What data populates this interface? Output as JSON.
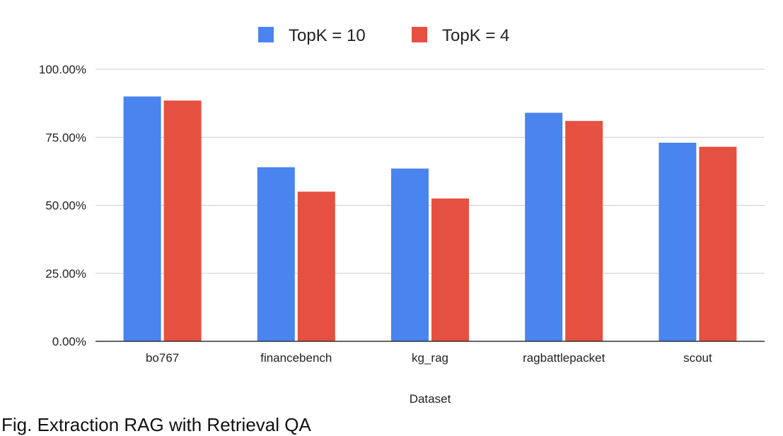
{
  "chart_data": {
    "type": "bar",
    "title": "",
    "xlabel": "Dataset",
    "ylabel": "",
    "categories": [
      "bo767",
      "financebench",
      "kg_rag",
      "ragbattlepacket",
      "scout"
    ],
    "series": [
      {
        "name": "TopK = 10",
        "color": "#4a84ee",
        "values": [
          90,
          64,
          63.5,
          84,
          73
        ]
      },
      {
        "name": "TopK = 4",
        "color": "#e65040",
        "values": [
          88.5,
          55,
          52.5,
          81,
          71.5
        ]
      }
    ],
    "ylim": [
      0,
      100
    ],
    "yticks": [
      0,
      25,
      50,
      75,
      100
    ],
    "ytick_labels": [
      "0.00%",
      "25.00%",
      "50.00%",
      "75.00%",
      "100.00%"
    ],
    "grid": true,
    "legend_position": "top-center"
  },
  "caption": "Fig. Extraction RAG with Retrieval QA"
}
